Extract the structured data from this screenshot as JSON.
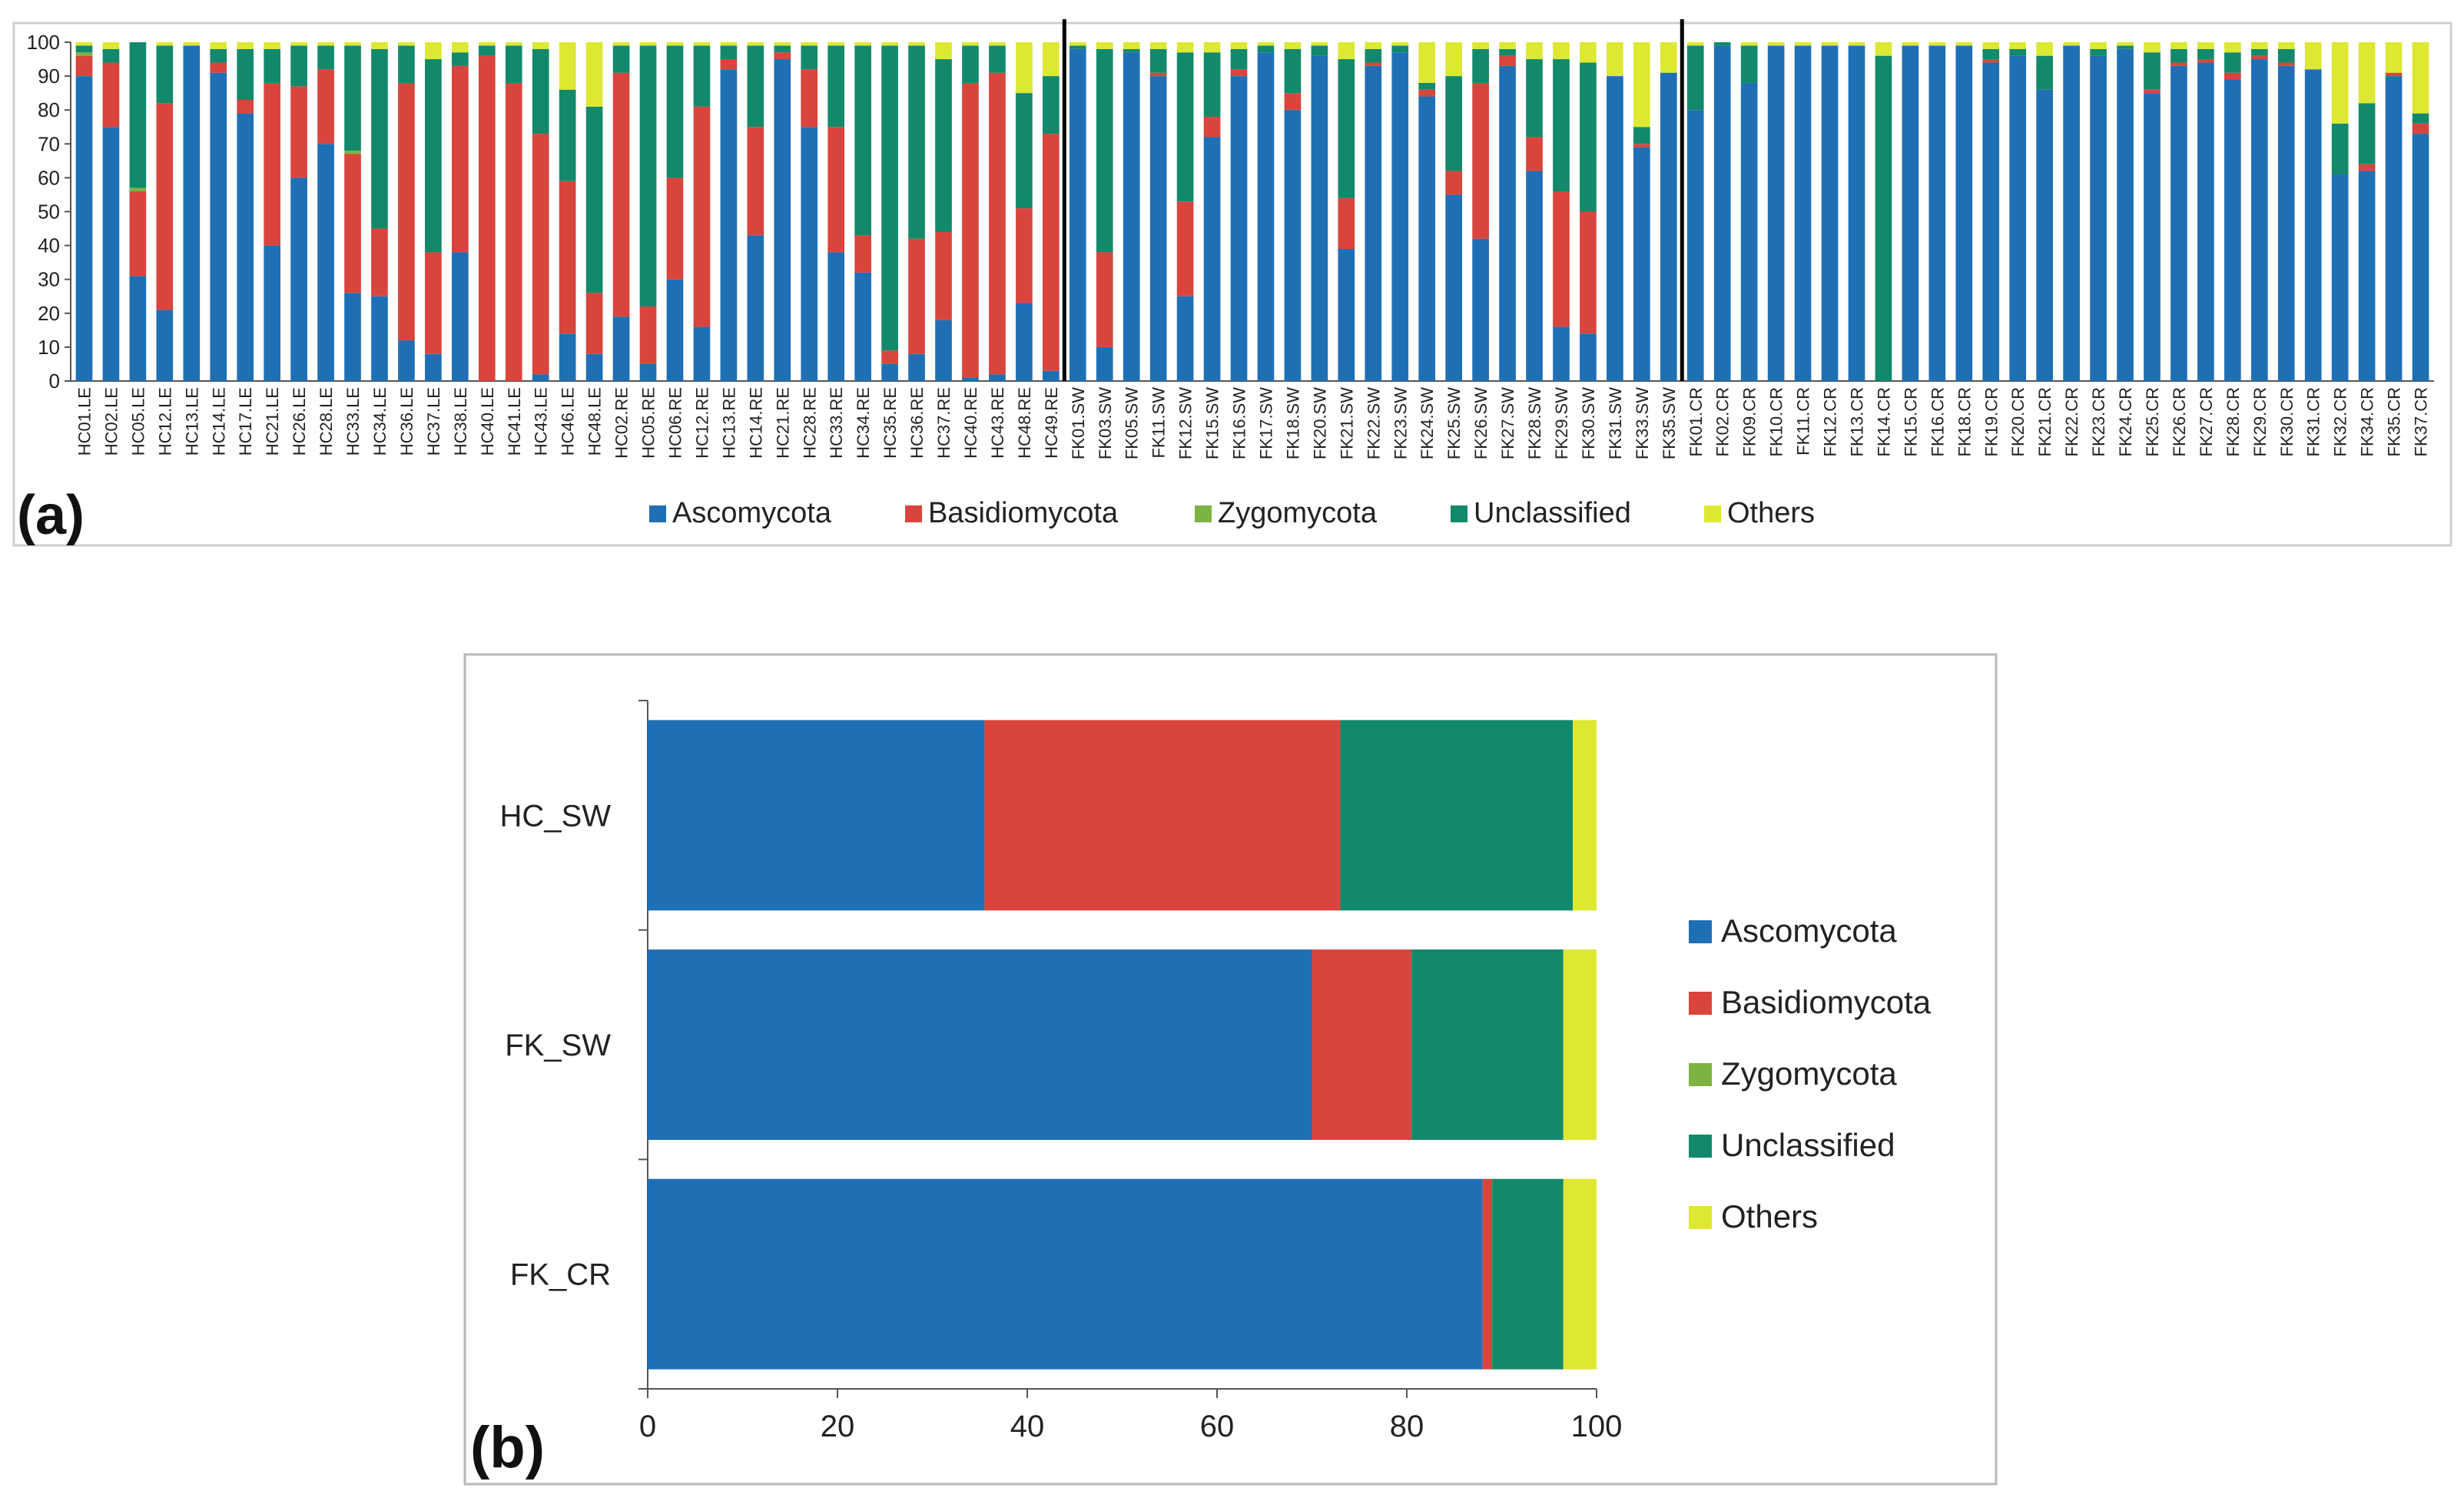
{
  "panels": {
    "a_label": "(a)",
    "b_label": "(b)"
  },
  "legend_items": [
    {
      "name": "Ascomycota",
      "color": "#1f6fb5"
    },
    {
      "name": "Basidiomycota",
      "color": "#d9453d"
    },
    {
      "name": "Zygomycota",
      "color": "#7cb342"
    },
    {
      "name": "Unclassified",
      "color": "#12896a"
    },
    {
      "name": "Others",
      "color": "#dde833"
    }
  ],
  "chart_data": [
    {
      "type": "bar",
      "stacked": true,
      "orientation": "vertical",
      "title": "",
      "ylim": [
        0,
        100
      ],
      "yticks": [
        0,
        10,
        20,
        30,
        40,
        50,
        60,
        70,
        80,
        90,
        100
      ],
      "grid": false,
      "legend_position": "bottom",
      "group_separators_after": [
        "HC49.RE",
        "FK35.SW"
      ],
      "categories": [
        "HC01.LE",
        "HC02.LE",
        "HC05.LE",
        "HC12.LE",
        "HC13.LE",
        "HC14.LE",
        "HC17.LE",
        "HC21.LE",
        "HC26.LE",
        "HC28.LE",
        "HC33.LE",
        "HC34.LE",
        "HC36.LE",
        "HC37.LE",
        "HC38.LE",
        "HC40.LE",
        "HC41.LE",
        "HC43.LE",
        "HC46.LE",
        "HC48.LE",
        "HC02.RE",
        "HC05.RE",
        "HC06.RE",
        "HC12.RE",
        "HC13.RE",
        "HC14.RE",
        "HC21.RE",
        "HC28.RE",
        "HC33.RE",
        "HC34.RE",
        "HC35.RE",
        "HC36.RE",
        "HC37.RE",
        "HC40.RE",
        "HC43.RE",
        "HC48.RE",
        "HC49.RE",
        "FK01.SW",
        "FK03.SW",
        "FK05.SW",
        "FK11.SW",
        "FK12.SW",
        "FK15.SW",
        "FK16.SW",
        "FK17.SW",
        "FK18.SW",
        "FK20.SW",
        "FK21.SW",
        "FK22.SW",
        "FK23.SW",
        "FK24.SW",
        "FK25.SW",
        "FK26.SW",
        "FK27.SW",
        "FK28.SW",
        "FK29.SW",
        "FK30.SW",
        "FK31.SW",
        "FK33.SW",
        "FK35.SW",
        "FK01.CR",
        "FK02.CR",
        "FK09.CR",
        "FK10.CR",
        "FK11.CR",
        "FK12.CR",
        "FK13.CR",
        "FK14.CR",
        "FK15.CR",
        "FK16.CR",
        "FK18.CR",
        "FK19.CR",
        "FK20.CR",
        "FK21.CR",
        "FK22.CR",
        "FK23.CR",
        "FK24.CR",
        "FK25.CR",
        "FK26.CR",
        "FK27.CR",
        "FK28.CR",
        "FK29.CR",
        "FK30.CR",
        "FK31.CR",
        "FK32.CR",
        "FK34.CR",
        "FK35.CR",
        "FK37.CR"
      ],
      "series": [
        {
          "name": "Ascomycota",
          "values": [
            90,
            75,
            31,
            21,
            99,
            91,
            79,
            40,
            60,
            70,
            26,
            25,
            12,
            8,
            38,
            0,
            0,
            2,
            14,
            8,
            19,
            5,
            30,
            16,
            92,
            43,
            95,
            75,
            38,
            32,
            5,
            8,
            18,
            1,
            2,
            23,
            3,
            98,
            10,
            97,
            90,
            25,
            72,
            90,
            97,
            80,
            96,
            39,
            93,
            97,
            84,
            55,
            42,
            93,
            62,
            16,
            14,
            90,
            69,
            91,
            80,
            99,
            88,
            99,
            99,
            99,
            99,
            0,
            99,
            99,
            99,
            94,
            96,
            86,
            99,
            96,
            98,
            85,
            93,
            94,
            89,
            95,
            93,
            92,
            61,
            62,
            90,
            73
          ]
        },
        {
          "name": "Basidiomycota",
          "values": [
            6,
            19,
            25,
            61,
            0,
            3,
            4,
            48,
            27,
            22,
            41,
            20,
            76,
            30,
            55,
            96,
            88,
            71,
            45,
            18,
            72,
            17,
            30,
            65,
            3,
            32,
            2,
            17,
            37,
            11,
            4,
            34,
            26,
            87,
            89,
            28,
            70,
            0,
            28,
            0,
            1,
            28,
            6,
            2,
            0,
            5,
            0,
            15,
            1,
            0,
            2,
            7,
            46,
            3,
            10,
            40,
            36,
            0,
            1,
            0,
            0,
            0,
            0,
            0,
            0,
            0,
            0,
            0,
            0,
            0,
            0,
            1,
            0,
            0,
            0,
            0,
            0,
            1,
            1,
            1,
            2,
            1,
            1,
            0,
            0,
            2,
            1,
            3
          ]
        },
        {
          "name": "Zygomycota",
          "values": [
            1,
            0,
            1,
            0,
            0,
            0,
            0,
            0,
            0,
            0,
            1,
            0,
            0,
            0,
            0,
            0,
            0,
            0,
            0,
            0,
            0,
            0,
            0,
            0,
            0,
            0,
            0,
            0,
            0,
            0,
            0,
            0,
            0,
            0,
            0,
            0,
            0,
            0,
            0,
            0,
            0,
            0,
            0,
            0,
            0,
            0,
            0,
            0,
            0,
            0,
            0,
            0,
            0,
            0,
            0,
            0,
            0,
            0,
            0,
            0,
            0,
            0,
            0,
            0,
            0,
            0,
            0,
            0,
            0,
            0,
            0,
            0,
            0,
            0,
            0,
            0,
            0,
            0,
            0,
            0,
            0,
            0,
            0,
            0,
            0,
            0,
            0,
            0
          ]
        },
        {
          "name": "Unclassified",
          "values": [
            2,
            4,
            43,
            17,
            0,
            4,
            15,
            10,
            12,
            7,
            31,
            53,
            11,
            57,
            4,
            3,
            11,
            25,
            27,
            55,
            8,
            77,
            39,
            18,
            4,
            24,
            2,
            7,
            24,
            56,
            90,
            57,
            51,
            11,
            8,
            34,
            17,
            1,
            60,
            1,
            7,
            44,
            19,
            6,
            2,
            13,
            3,
            41,
            4,
            2,
            2,
            28,
            10,
            2,
            23,
            39,
            44,
            0,
            5,
            0,
            19,
            1,
            11,
            0,
            0,
            0,
            0,
            96,
            0,
            0,
            0,
            3,
            2,
            10,
            0,
            2,
            1,
            11,
            4,
            3,
            6,
            2,
            4,
            0,
            15,
            18,
            0,
            3
          ]
        },
        {
          "name": "Others",
          "values": [
            1,
            2,
            0,
            1,
            1,
            2,
            2,
            2,
            1,
            1,
            1,
            2,
            1,
            5,
            3,
            1,
            1,
            2,
            14,
            19,
            1,
            1,
            1,
            1,
            1,
            1,
            1,
            1,
            1,
            1,
            1,
            1,
            5,
            1,
            1,
            15,
            10,
            1,
            2,
            2,
            2,
            3,
            3,
            2,
            1,
            2,
            1,
            5,
            2,
            1,
            12,
            10,
            2,
            2,
            5,
            5,
            6,
            10,
            25,
            9,
            1,
            0,
            1,
            1,
            1,
            1,
            1,
            4,
            1,
            1,
            1,
            2,
            2,
            4,
            1,
            2,
            1,
            3,
            2,
            2,
            3,
            2,
            2,
            8,
            24,
            18,
            9,
            21
          ]
        }
      ]
    },
    {
      "type": "bar",
      "stacked": true,
      "orientation": "horizontal",
      "title": "",
      "xlim": [
        0,
        100
      ],
      "xticks": [
        0,
        20,
        40,
        60,
        80,
        100
      ],
      "grid": false,
      "legend_position": "right",
      "categories": [
        "HC_SW",
        "FK_SW",
        "FK_CR"
      ],
      "series": [
        {
          "name": "Ascomycota",
          "values": [
            35.5,
            70,
            88
          ]
        },
        {
          "name": "Basidiomycota",
          "values": [
            37.5,
            10.5,
            1
          ]
        },
        {
          "name": "Zygomycota",
          "values": [
            0,
            0,
            0
          ]
        },
        {
          "name": "Unclassified",
          "values": [
            24.5,
            16,
            7.5
          ]
        },
        {
          "name": "Others",
          "values": [
            2.5,
            3.5,
            3.5
          ]
        }
      ]
    }
  ]
}
